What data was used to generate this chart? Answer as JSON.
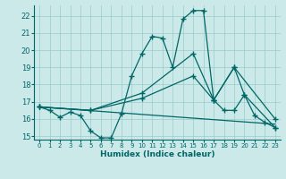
{
  "bg_color": "#cce9e9",
  "grid_color": "#99cccc",
  "line_color": "#006666",
  "xlabel": "Humidex (Indice chaleur)",
  "xlim": [
    -0.5,
    23.5
  ],
  "ylim": [
    14.8,
    22.6
  ],
  "yticks": [
    15,
    16,
    17,
    18,
    19,
    20,
    21,
    22
  ],
  "xticks": [
    0,
    1,
    2,
    3,
    4,
    5,
    6,
    7,
    8,
    9,
    10,
    11,
    12,
    13,
    14,
    15,
    16,
    17,
    18,
    19,
    20,
    21,
    22,
    23
  ],
  "line1_x": [
    0,
    1,
    2,
    3,
    4,
    5,
    6,
    7,
    8,
    9,
    10,
    11,
    12,
    13,
    14,
    15,
    16,
    17,
    18,
    19,
    20,
    21,
    22,
    23
  ],
  "line1_y": [
    16.7,
    16.5,
    16.1,
    16.4,
    16.2,
    15.3,
    14.9,
    14.9,
    16.3,
    18.5,
    19.8,
    20.8,
    20.7,
    19.0,
    21.8,
    22.3,
    22.3,
    17.1,
    16.5,
    16.5,
    17.4,
    16.2,
    15.8,
    15.5
  ],
  "line2_x": [
    0,
    5,
    10,
    15,
    17,
    19,
    20,
    23
  ],
  "line2_y": [
    16.7,
    16.5,
    17.2,
    18.5,
    17.1,
    19.0,
    17.4,
    15.5
  ],
  "line3_x": [
    0,
    5,
    10,
    15,
    17,
    19,
    23
  ],
  "line3_y": [
    16.7,
    16.5,
    17.5,
    19.8,
    17.1,
    19.0,
    16.0
  ],
  "line4_x": [
    0,
    23
  ],
  "line4_y": [
    16.7,
    15.7
  ]
}
